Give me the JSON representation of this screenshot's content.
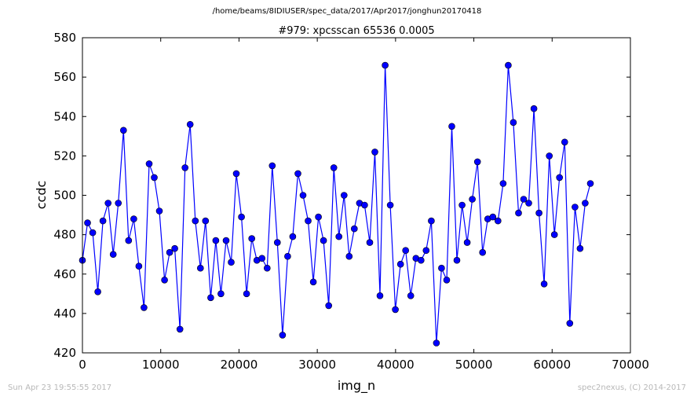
{
  "header": {
    "path": "/home/beams/8IDIUSER/spec_data/2017/Apr2017/jonghun20170418"
  },
  "footer": {
    "timestamp": "Sun Apr 23 19:55:55 2017",
    "credit": "spec2nexus, (C) 2014-2017"
  },
  "chart_data": {
    "type": "line",
    "title": "#979: xpcsscan 65536 0.0005",
    "xlabel": "img_n",
    "ylabel": "ccdc",
    "xlim": [
      0,
      70000
    ],
    "ylim": [
      420,
      580
    ],
    "xticks": [
      0,
      10000,
      20000,
      30000,
      40000,
      50000,
      60000,
      70000
    ],
    "yticks": [
      420,
      440,
      460,
      480,
      500,
      520,
      540,
      560,
      580
    ],
    "marker": "circle",
    "color": "#0000ff",
    "grid": false,
    "series": [
      {
        "x": [
          0,
          655,
          1311,
          1966,
          2621,
          3277,
          3932,
          4587,
          5243,
          5898,
          6554,
          7209,
          7864,
          8520,
          9175,
          9830,
          10486,
          11141,
          11796,
          12452,
          13107,
          13762,
          14418,
          15073,
          15729,
          16384,
          17039,
          17695,
          18350,
          19005,
          19661,
          20316,
          20972,
          21627,
          22282,
          22938,
          23593,
          24248,
          24904,
          25559,
          26214,
          26870,
          27525,
          28180,
          28836,
          29491,
          30147,
          30802,
          31457,
          32113,
          32768,
          33423,
          34079,
          34734,
          35389,
          36045,
          36700,
          37356,
          38011,
          38666,
          39322,
          39977,
          40632,
          41288,
          41943,
          42598,
          43254,
          43909,
          44564,
          45220,
          45875,
          46531,
          47186,
          47841,
          48497,
          49152,
          49807,
          50463,
          51118,
          51773,
          52429,
          53084,
          53740,
          54395,
          55050,
          55706,
          56361,
          57016,
          57672,
          58327,
          58982,
          59638,
          60293,
          60948,
          61604,
          62259,
          62915,
          63570,
          64225,
          64881
        ],
        "y": [
          467,
          486,
          481,
          451,
          487,
          496,
          470,
          496,
          533,
          477,
          488,
          464,
          443,
          516,
          509,
          492,
          457,
          471,
          473,
          432,
          514,
          536,
          487,
          463,
          487,
          448,
          477,
          450,
          477,
          466,
          511,
          489,
          450,
          478,
          467,
          468,
          463,
          515,
          476,
          429,
          469,
          479,
          511,
          500,
          487,
          456,
          489,
          477,
          444,
          514,
          479,
          500,
          469,
          483,
          496,
          495,
          476,
          522,
          449,
          566,
          495,
          442,
          465,
          472,
          449,
          468,
          467,
          472,
          487,
          425,
          463,
          457,
          535,
          467,
          495,
          476,
          498,
          517,
          471,
          488,
          489,
          487,
          506,
          566,
          537,
          491,
          498,
          496,
          544,
          491,
          455,
          520,
          480,
          509,
          527,
          435,
          494,
          473,
          496,
          506
        ]
      }
    ]
  }
}
